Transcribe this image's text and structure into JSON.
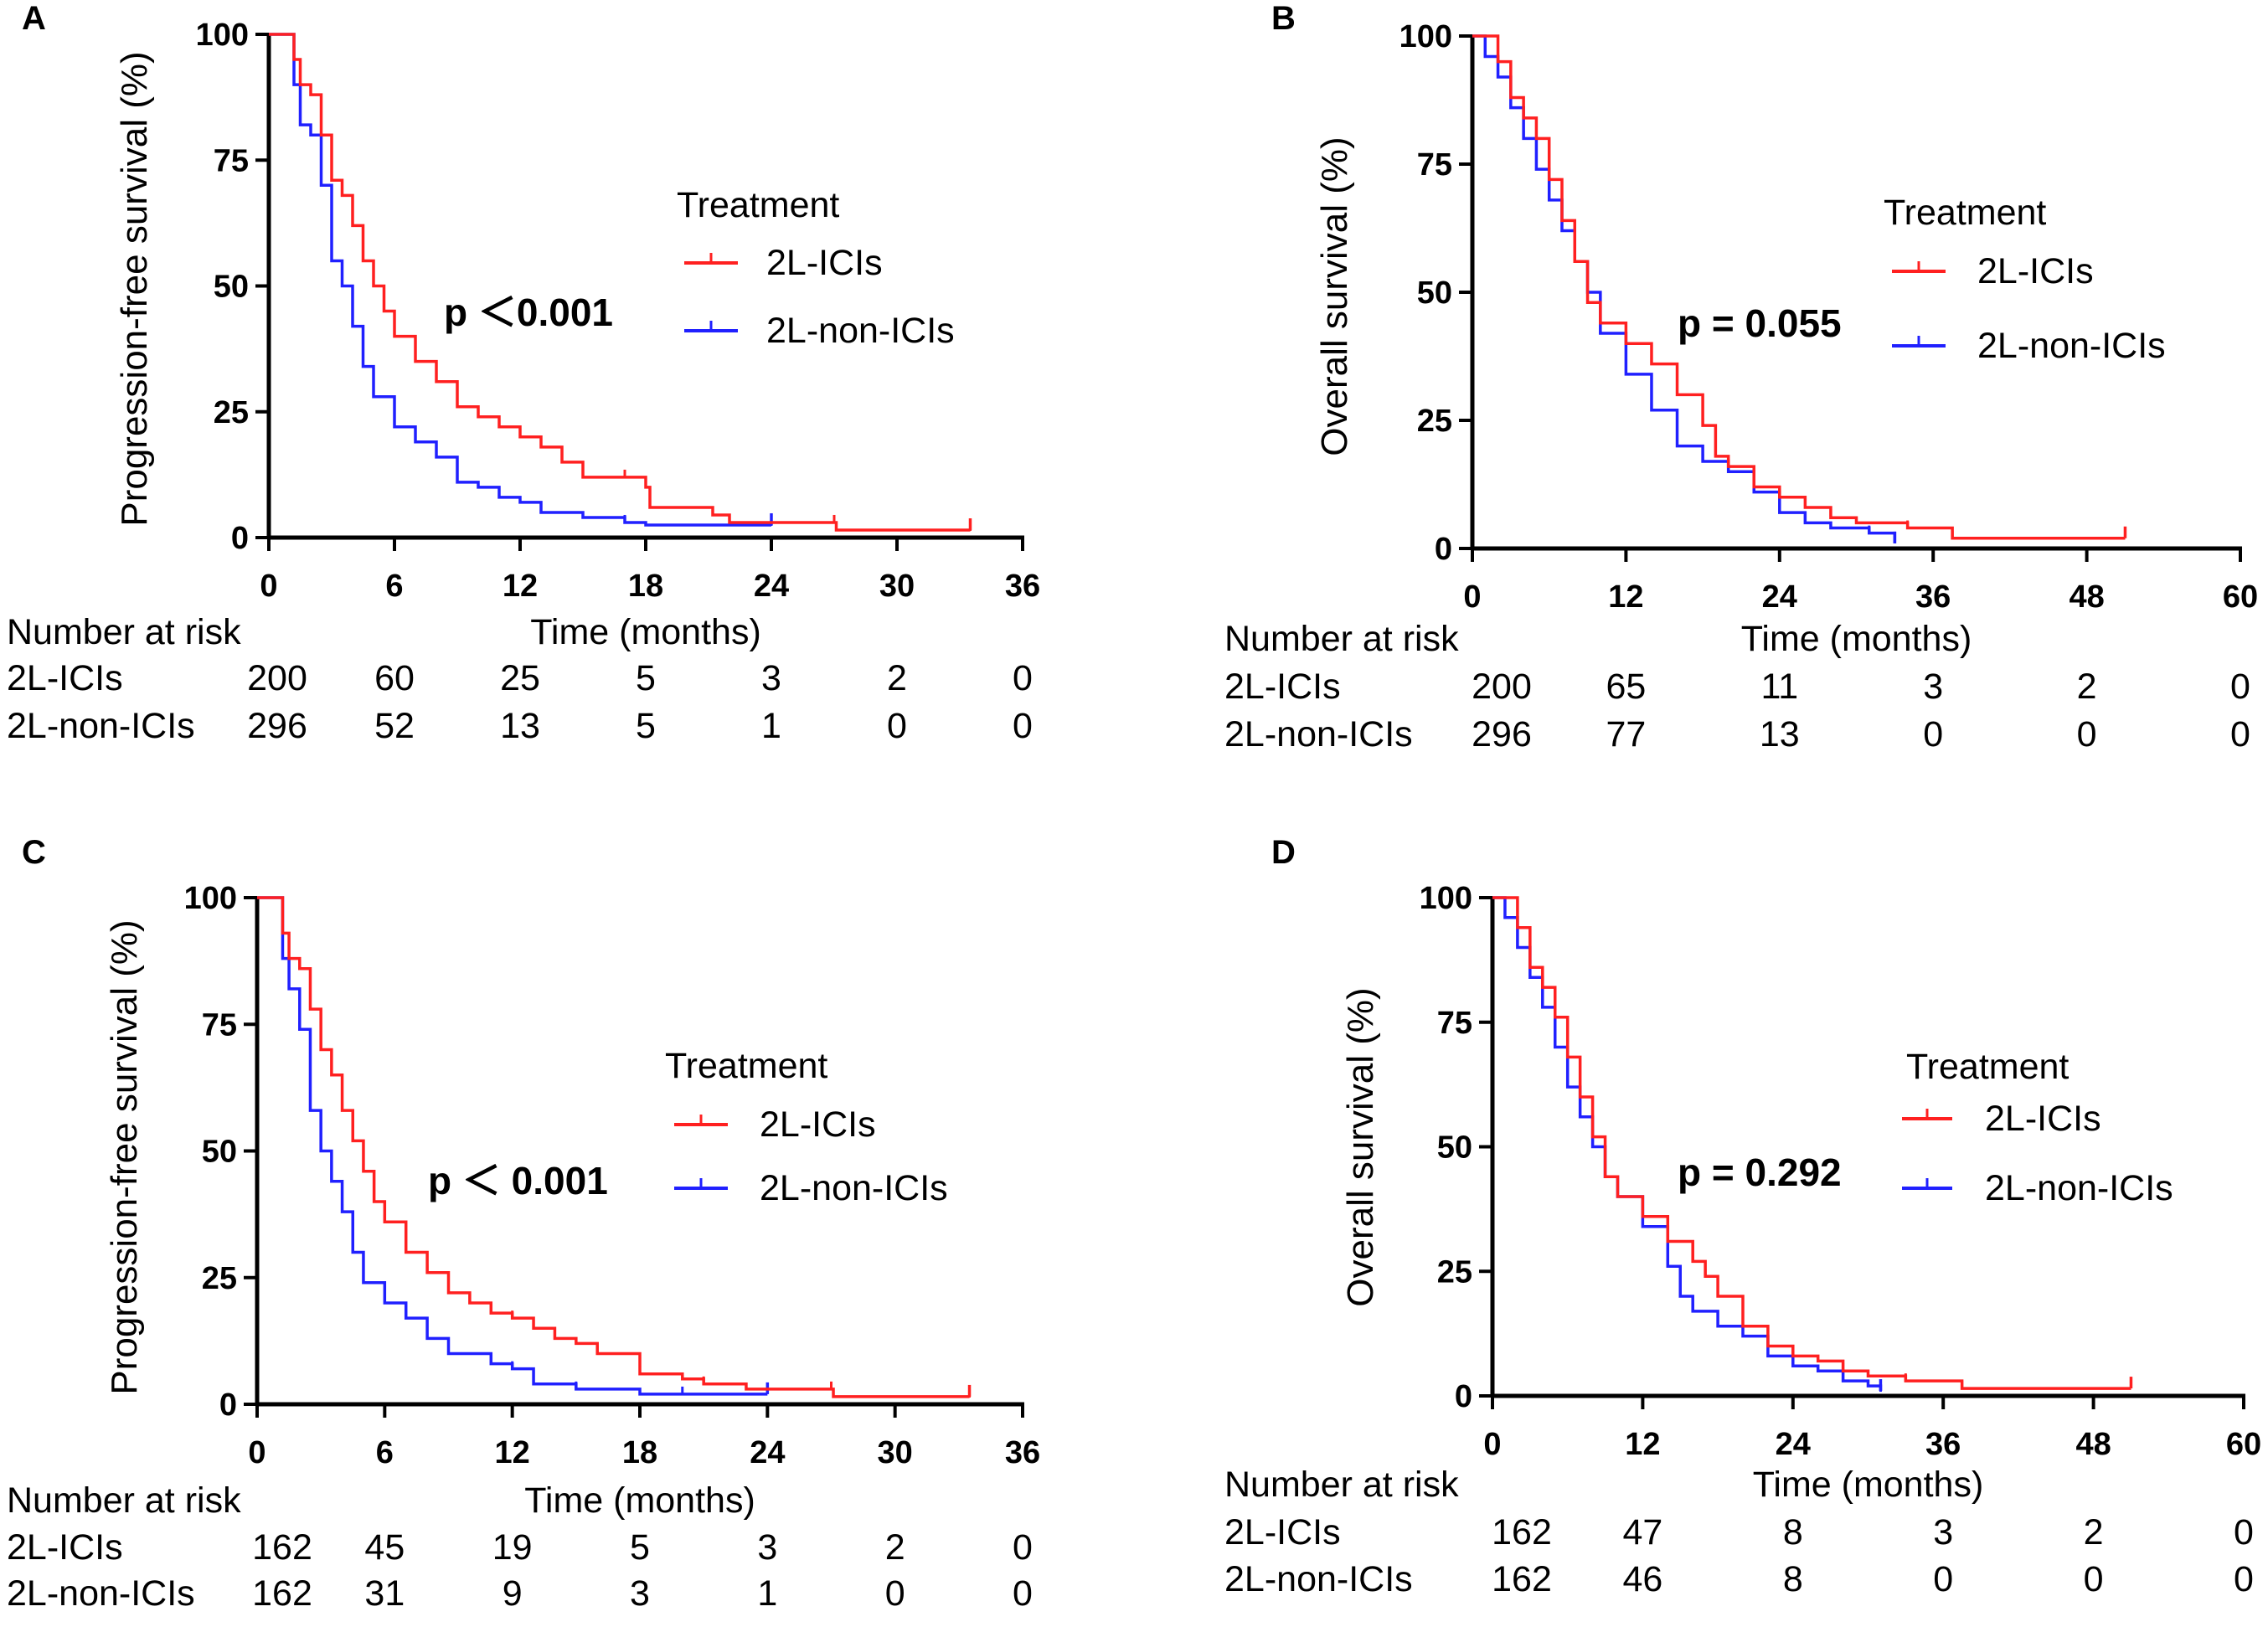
{
  "colors": {
    "ici": "#ff2020",
    "non_ici": "#2020ff",
    "axis": "#000000"
  },
  "chart_data": [
    {
      "panel": "A",
      "type": "line",
      "kind": "kaplan-meier",
      "ylabel": "Progression-free survival (%)",
      "xlabel": "Time (months)",
      "xlim": [
        0,
        36
      ],
      "ylim": [
        0,
        100
      ],
      "xticks": [
        "0",
        "6",
        "12",
        "18",
        "24",
        "30",
        "36"
      ],
      "yticks": [
        "0",
        "25",
        "50",
        "75",
        "100"
      ],
      "legend_title": "Treatment",
      "legend_position": "right",
      "p_value": "p ＜0.001",
      "series": [
        {
          "name": "2L-ICIs",
          "points": [
            [
              0,
              100
            ],
            [
              1,
              100
            ],
            [
              1.2,
              95
            ],
            [
              1.5,
              90
            ],
            [
              2,
              88
            ],
            [
              2.5,
              80
            ],
            [
              3,
              71
            ],
            [
              3.5,
              68
            ],
            [
              4,
              62
            ],
            [
              4.5,
              55
            ],
            [
              5,
              50
            ],
            [
              5.5,
              45
            ],
            [
              6,
              40
            ],
            [
              7,
              35
            ],
            [
              8,
              31
            ],
            [
              9,
              26
            ],
            [
              10,
              24
            ],
            [
              11,
              22
            ],
            [
              12,
              20
            ],
            [
              13,
              18
            ],
            [
              14,
              15
            ],
            [
              15,
              12
            ],
            [
              17,
              12
            ],
            [
              18,
              10
            ],
            [
              18.2,
              6
            ],
            [
              21,
              6
            ],
            [
              21.2,
              4.5
            ],
            [
              22,
              3
            ],
            [
              27,
              3
            ],
            [
              27.1,
              1.5
            ],
            [
              33.5,
              1.5
            ]
          ]
        },
        {
          "name": "2L-non-ICIs",
          "points": [
            [
              0,
              100
            ],
            [
              1,
              100
            ],
            [
              1.2,
              90
            ],
            [
              1.5,
              82
            ],
            [
              2,
              80
            ],
            [
              2.5,
              70
            ],
            [
              3,
              55
            ],
            [
              3.5,
              50
            ],
            [
              4,
              42
            ],
            [
              4.5,
              34
            ],
            [
              5,
              28
            ],
            [
              6,
              22
            ],
            [
              7,
              19
            ],
            [
              8,
              16
            ],
            [
              9,
              11
            ],
            [
              10,
              10
            ],
            [
              11,
              8
            ],
            [
              12,
              7
            ],
            [
              13,
              5
            ],
            [
              15,
              4
            ],
            [
              17,
              3
            ],
            [
              18,
              2.5
            ],
            [
              24,
              2.5
            ]
          ]
        }
      ],
      "risk_table": {
        "title": "Number at risk",
        "rows": [
          {
            "label": "2L-ICIs",
            "values": [
              "200",
              "60",
              "25",
              "5",
              "3",
              "2",
              "0"
            ]
          },
          {
            "label": "2L-non-ICIs",
            "values": [
              "296",
              "52",
              "13",
              "5",
              "1",
              "0",
              "0"
            ]
          }
        ]
      }
    },
    {
      "panel": "B",
      "type": "line",
      "kind": "kaplan-meier",
      "ylabel": "Overall survival (%)",
      "xlabel": "Time (months)",
      "xlim": [
        0,
        60
      ],
      "ylim": [
        0,
        100
      ],
      "xticks": [
        "0",
        "12",
        "24",
        "36",
        "48",
        "60"
      ],
      "yticks": [
        "0",
        "25",
        "50",
        "75",
        "100"
      ],
      "legend_title": "Treatment",
      "legend_position": "right",
      "p_value": "p = 0.055",
      "series": [
        {
          "name": "2L-ICIs",
          "points": [
            [
              0,
              100
            ],
            [
              1,
              100
            ],
            [
              2,
              95
            ],
            [
              3,
              88
            ],
            [
              4,
              84
            ],
            [
              5,
              80
            ],
            [
              6,
              72
            ],
            [
              7,
              64
            ],
            [
              8,
              56
            ],
            [
              9,
              48
            ],
            [
              10,
              44
            ],
            [
              12,
              40
            ],
            [
              14,
              36
            ],
            [
              16,
              30
            ],
            [
              18,
              24
            ],
            [
              19,
              18
            ],
            [
              20,
              16
            ],
            [
              22,
              12
            ],
            [
              24,
              10
            ],
            [
              26,
              8
            ],
            [
              28,
              6
            ],
            [
              30,
              5
            ],
            [
              34,
              4
            ],
            [
              37,
              4
            ],
            [
              37.5,
              2
            ],
            [
              51,
              2
            ]
          ]
        },
        {
          "name": "2L-non-ICIs",
          "points": [
            [
              0,
              100
            ],
            [
              1,
              96
            ],
            [
              2,
              92
            ],
            [
              3,
              86
            ],
            [
              4,
              80
            ],
            [
              5,
              74
            ],
            [
              6,
              68
            ],
            [
              7,
              62
            ],
            [
              8,
              56
            ],
            [
              9,
              50
            ],
            [
              10,
              42
            ],
            [
              12,
              34
            ],
            [
              14,
              27
            ],
            [
              16,
              20
            ],
            [
              18,
              17
            ],
            [
              20,
              15
            ],
            [
              22,
              11
            ],
            [
              24,
              7
            ],
            [
              26,
              5
            ],
            [
              28,
              4
            ],
            [
              31,
              3
            ],
            [
              33,
              1
            ]
          ]
        }
      ],
      "risk_table": {
        "title": "Number at risk",
        "rows": [
          {
            "label": "2L-ICIs",
            "values": [
              "200",
              "65",
              "11",
              "3",
              "2",
              "0"
            ]
          },
          {
            "label": "2L-non-ICIs",
            "values": [
              "296",
              "77",
              "13",
              "0",
              "0",
              "0"
            ]
          }
        ]
      }
    },
    {
      "panel": "C",
      "type": "line",
      "kind": "kaplan-meier",
      "ylabel": "Progression-free survival (%)",
      "xlabel": "Time (months)",
      "xlim": [
        0,
        36
      ],
      "ylim": [
        0,
        100
      ],
      "xticks": [
        "0",
        "6",
        "12",
        "18",
        "24",
        "30",
        "36"
      ],
      "yticks": [
        "0",
        "25",
        "50",
        "75",
        "100"
      ],
      "legend_title": "Treatment",
      "legend_position": "right",
      "p_value": "p ＜ 0.001",
      "series": [
        {
          "name": "2L-ICIs",
          "points": [
            [
              0,
              100
            ],
            [
              1,
              100
            ],
            [
              1.2,
              93
            ],
            [
              1.5,
              88
            ],
            [
              2,
              86
            ],
            [
              2.5,
              78
            ],
            [
              3,
              70
            ],
            [
              3.5,
              65
            ],
            [
              4,
              58
            ],
            [
              4.5,
              52
            ],
            [
              5,
              46
            ],
            [
              5.5,
              40
            ],
            [
              6,
              36
            ],
            [
              7,
              30
            ],
            [
              8,
              26
            ],
            [
              9,
              22
            ],
            [
              10,
              20
            ],
            [
              11,
              18
            ],
            [
              12,
              17
            ],
            [
              13,
              15
            ],
            [
              14,
              13
            ],
            [
              15,
              12
            ],
            [
              16,
              10
            ],
            [
              17.5,
              10
            ],
            [
              18,
              6
            ],
            [
              20,
              5
            ],
            [
              21,
              4
            ],
            [
              23,
              3
            ],
            [
              27,
              3
            ],
            [
              27.1,
              1.5
            ],
            [
              33.5,
              1.5
            ]
          ]
        },
        {
          "name": "2L-non-ICIs",
          "points": [
            [
              0,
              100
            ],
            [
              1,
              100
            ],
            [
              1.2,
              88
            ],
            [
              1.5,
              82
            ],
            [
              2,
              74
            ],
            [
              2.5,
              58
            ],
            [
              3,
              50
            ],
            [
              3.5,
              44
            ],
            [
              4,
              38
            ],
            [
              4.5,
              30
            ],
            [
              5,
              24
            ],
            [
              6,
              20
            ],
            [
              7,
              17
            ],
            [
              8,
              13
            ],
            [
              9,
              10
            ],
            [
              11,
              8
            ],
            [
              12,
              7
            ],
            [
              13,
              4
            ],
            [
              15,
              3
            ],
            [
              18,
              2
            ],
            [
              20,
              2
            ],
            [
              24,
              2
            ]
          ]
        }
      ],
      "risk_table": {
        "title": "Number at risk",
        "rows": [
          {
            "label": "2L-ICIs",
            "values": [
              "162",
              "45",
              "19",
              "5",
              "3",
              "2",
              "0"
            ]
          },
          {
            "label": "2L-non-ICIs",
            "values": [
              "162",
              "31",
              "9",
              "3",
              "1",
              "0",
              "0"
            ]
          }
        ]
      }
    },
    {
      "panel": "D",
      "type": "line",
      "kind": "kaplan-meier",
      "ylabel": "Overall survival (%)",
      "xlabel": "Time (months)",
      "xlim": [
        0,
        60
      ],
      "ylim": [
        0,
        100
      ],
      "xticks": [
        "0",
        "12",
        "24",
        "36",
        "48",
        "60"
      ],
      "yticks": [
        "0",
        "25",
        "50",
        "75",
        "100"
      ],
      "legend_title": "Treatment",
      "legend_position": "right",
      "p_value": "p = 0.292",
      "series": [
        {
          "name": "2L-ICIs",
          "points": [
            [
              0,
              100
            ],
            [
              1,
              100
            ],
            [
              2,
              94
            ],
            [
              3,
              86
            ],
            [
              4,
              82
            ],
            [
              5,
              76
            ],
            [
              6,
              68
            ],
            [
              7,
              60
            ],
            [
              8,
              52
            ],
            [
              9,
              44
            ],
            [
              10,
              40
            ],
            [
              12,
              36
            ],
            [
              14,
              31
            ],
            [
              16,
              27
            ],
            [
              17,
              24
            ],
            [
              18,
              20
            ],
            [
              20,
              14
            ],
            [
              22,
              10
            ],
            [
              24,
              8
            ],
            [
              26,
              7
            ],
            [
              28,
              5
            ],
            [
              30,
              4
            ],
            [
              33,
              3
            ],
            [
              37,
              3
            ],
            [
              37.5,
              1.5
            ],
            [
              51,
              1.5
            ]
          ]
        },
        {
          "name": "2L-non-ICIs",
          "points": [
            [
              0,
              100
            ],
            [
              1,
              96
            ],
            [
              2,
              90
            ],
            [
              3,
              84
            ],
            [
              4,
              78
            ],
            [
              5,
              70
            ],
            [
              6,
              62
            ],
            [
              7,
              56
            ],
            [
              8,
              50
            ],
            [
              9,
              44
            ],
            [
              10,
              40
            ],
            [
              12,
              34
            ],
            [
              14,
              26
            ],
            [
              15,
              20
            ],
            [
              16,
              17
            ],
            [
              18,
              14
            ],
            [
              20,
              12
            ],
            [
              22,
              8
            ],
            [
              24,
              6
            ],
            [
              26,
              5
            ],
            [
              28,
              3
            ],
            [
              30,
              2
            ],
            [
              31,
              1
            ]
          ]
        }
      ],
      "risk_table": {
        "title": "Number at risk",
        "rows": [
          {
            "label": "2L-ICIs",
            "values": [
              "162",
              "47",
              "8",
              "3",
              "2",
              "0"
            ]
          },
          {
            "label": "2L-non-ICIs",
            "values": [
              "162",
              "46",
              "8",
              "0",
              "0",
              "0"
            ]
          }
        ]
      }
    }
  ]
}
